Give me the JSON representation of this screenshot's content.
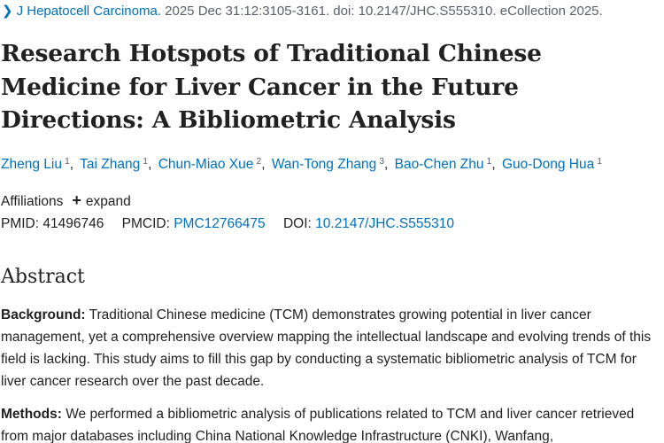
{
  "journal": {
    "name": "J Hepatocell Carcinoma.",
    "citation": " 2025 Dec 31:12:3105-3161. doi: 10.2147/JHC.S555310. eCollection 2025."
  },
  "title": "Research Hotspots of Traditional Chinese Medicine for Liver Cancer in the Future Directions: A Bibliometric Analysis",
  "authors": [
    {
      "name": "Zheng Liu",
      "aff": "1"
    },
    {
      "name": "Tai Zhang",
      "aff": "1"
    },
    {
      "name": "Chun-Miao Xue",
      "aff": "2"
    },
    {
      "name": "Wan-Tong Zhang",
      "aff": "3"
    },
    {
      "name": "Bao-Chen Zhu",
      "aff": "1"
    },
    {
      "name": "Guo-Dong Hua",
      "aff": "1"
    }
  ],
  "affiliations": {
    "label": "Affiliations",
    "expand_label": "expand"
  },
  "identifiers": {
    "pmid_label": "PMID:",
    "pmid": "41496746",
    "pmcid_label": "PMCID:",
    "pmcid": "PMC12766475",
    "doi_label": "DOI:",
    "doi": "10.2147/JHC.S555310"
  },
  "abstract": {
    "heading": "Abstract",
    "background_label": "Background:",
    "background_text": " Traditional Chinese medicine (TCM) demonstrates growing potential in liver cancer management, yet a comprehensive overview mapping the intellectual landscape and evolving trends of this field is lacking. This study aims to fill this gap by conducting a systematic bibliometric analysis of TCM for liver cancer research over the past decade.",
    "methods_label": "Methods:",
    "methods_text": " We performed a bibliometric analysis of publications related to TCM and liver cancer retrieved from major databases including China National Knowledge Infrastructure (CNKI), Wanfang,"
  }
}
